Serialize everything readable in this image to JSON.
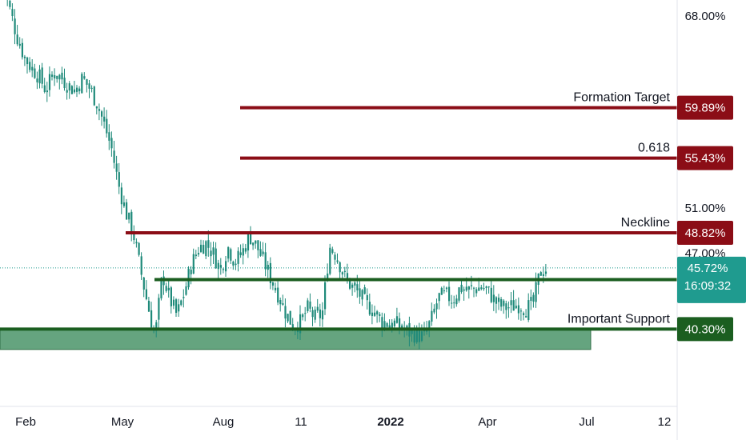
{
  "colors": {
    "background": "#ffffff",
    "candle": "#1f8a7a",
    "resistance": "#8b0d16",
    "support": "#1b5e20",
    "zone": "#4a9468",
    "current": "#1f9b8f",
    "grid": "#e0e3eb"
  },
  "chart_data": {
    "type": "candlestick",
    "title": "",
    "xlabel": "",
    "ylabel": "",
    "y_unit": "%",
    "ylim": [
      37.0,
      70.5
    ],
    "x_ticks": [
      "Feb",
      "May",
      "Aug",
      "11",
      "2022",
      "Apr",
      "Jul",
      "12"
    ],
    "y_ticks": [
      "68.00%",
      "51.00%",
      "47.00%"
    ],
    "last_value": "45.72%",
    "countdown": "16:09:32",
    "path_values": [
      71.2,
      68.6,
      66.2,
      64.4,
      63.4,
      62.7,
      61.4,
      63.0,
      62.6,
      61.9,
      61.4,
      62.5,
      61.6,
      60.3,
      58.4,
      56.3,
      53.0,
      50.6,
      48.8,
      45.5,
      42.4,
      39.6,
      45.2,
      43.0,
      41.5,
      43.5,
      46.0,
      47.5,
      47.9,
      47.0,
      45.5,
      47.6,
      46.2,
      47.1,
      48.6,
      47.6,
      46.2,
      44.7,
      43.3,
      41.7,
      40.6,
      40.9,
      42.1,
      41.3,
      41.6,
      47.6,
      46.8,
      45.0,
      44.1,
      43.5,
      42.5,
      42.0,
      41.1,
      40.8,
      40.8,
      40.4,
      40.0,
      39.8,
      39.6,
      41.1,
      43.1,
      43.3,
      42.9,
      44.0,
      43.7,
      43.9,
      44.0,
      43.5,
      42.6,
      42.2,
      42.3,
      42.5,
      42.1,
      42.5,
      45.4,
      45.7
    ],
    "levels": [
      {
        "name": "Formation Target",
        "value": 59.89,
        "label": "59.89%",
        "role": "resistance"
      },
      {
        "name": "0.618",
        "value": 55.43,
        "label": "55.43%",
        "role": "resistance"
      },
      {
        "name": "Neckline",
        "value": 48.82,
        "label": "48.82%",
        "role": "resistance"
      },
      {
        "name": "",
        "value": 44.68,
        "label": "44.68%",
        "role": "support"
      },
      {
        "name": "Important Support",
        "value": 40.3,
        "label": "40.30%",
        "role": "support"
      }
    ],
    "support_zone": [
      38.5,
      40.3
    ]
  }
}
